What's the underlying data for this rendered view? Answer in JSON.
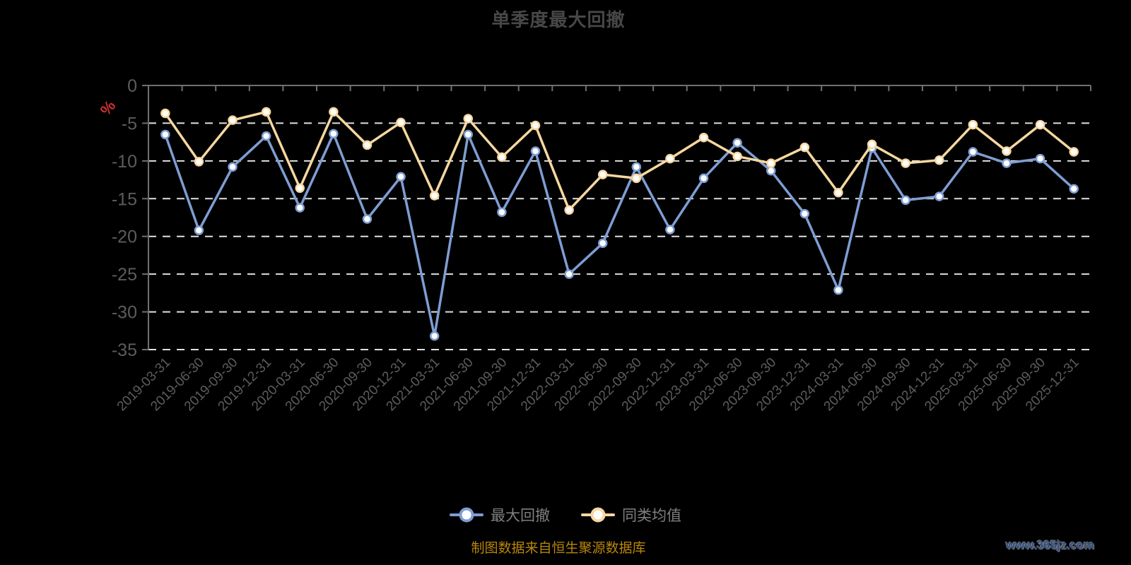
{
  "title": "单季度最大回撤",
  "y_axis": {
    "unit_label": "%",
    "unit_color": "#D32F2F",
    "ticks": [
      "0",
      "-5",
      "-10",
      "-15",
      "-20",
      "-25",
      "-30",
      "-35"
    ]
  },
  "legend": {
    "items": [
      {
        "label": "最大回撤",
        "color": "#7E9DD3"
      },
      {
        "label": "同类均值",
        "color": "#F6D7A0"
      }
    ]
  },
  "footer": {
    "caption": "制图数据来自恒生聚源数据库",
    "watermark": "www.365jz.com"
  },
  "colors": {
    "background": "#000000",
    "title": "#474747",
    "axis": "#707070",
    "grid": "#E0E0E0",
    "axis_label": "#5C5C5C",
    "marker_fill": "#FFFFFF"
  },
  "chart_data": {
    "type": "line",
    "title": "单季度最大回撤",
    "ylabel": "%",
    "ylim": [
      -35,
      0
    ],
    "y_tick_step": 5,
    "grid": "horizontal-dashed",
    "legend_position": "bottom",
    "x": [
      "2019-03-31",
      "2019-06-30",
      "2019-09-30",
      "2019-12-31",
      "2020-03-31",
      "2020-06-30",
      "2020-09-30",
      "2020-12-31",
      "2021-03-31",
      "2021-06-30",
      "2021-09-30",
      "2021-12-31",
      "2022-03-31",
      "2022-06-30",
      "2022-09-30",
      "2022-12-31",
      "2023-03-31",
      "2023-06-30",
      "2023-09-30",
      "2023-12-31",
      "2024-03-31",
      "2024-06-30",
      "2024-09-30",
      "2024-12-31",
      "2025-03-31",
      "2025-06-30",
      "2025-09-30",
      "2025-12-31"
    ],
    "series": [
      {
        "name": "最大回撤",
        "color": "#7E9DD3",
        "values": [
          -6.5,
          -19.2,
          -10.8,
          -6.7,
          -16.2,
          -6.4,
          -17.7,
          -12.1,
          -33.2,
          -6.5,
          -16.8,
          -8.7,
          -25.0,
          -20.9,
          -10.8,
          -19.1,
          -12.3,
          -7.6,
          -11.3,
          -17.0,
          -27.1,
          -8.3,
          -15.2,
          -14.7,
          -8.8,
          -10.3,
          -9.7,
          -13.7
        ]
      },
      {
        "name": "同类均值",
        "color": "#F6D7A0",
        "values": [
          -3.7,
          -10.1,
          -4.6,
          -3.5,
          -13.6,
          -3.5,
          -7.9,
          -4.9,
          -14.6,
          -4.4,
          -9.5,
          -5.3,
          -16.5,
          -11.8,
          -12.3,
          -9.7,
          -6.9,
          -9.4,
          -10.3,
          -8.2,
          -14.2,
          -7.8,
          -10.3,
          -9.9,
          -5.2,
          -8.7,
          -5.2,
          -8.8
        ]
      }
    ]
  }
}
